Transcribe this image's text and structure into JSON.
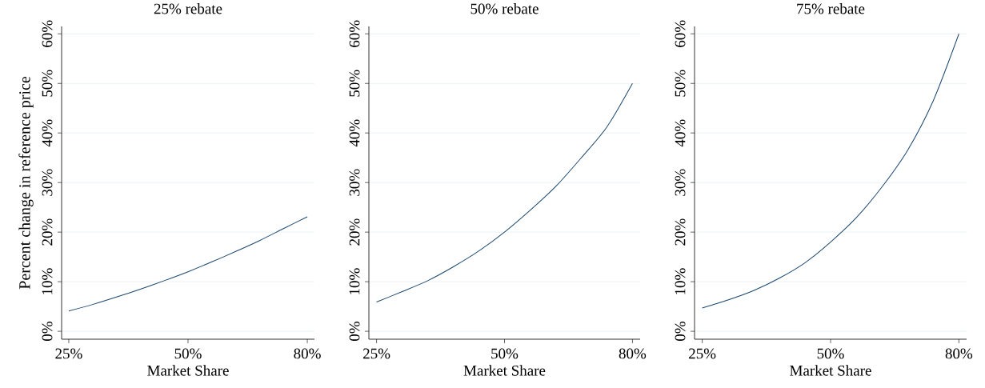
{
  "chart_data": [
    {
      "type": "line",
      "title": "25% rebate",
      "xlabel": "Market Share",
      "ylabel": "Percent change in reference price",
      "categories": [
        "25%",
        null,
        null,
        null,
        null,
        "50%",
        null,
        null,
        null,
        null,
        "80%"
      ],
      "values": [
        4.1,
        5.4,
        6.9,
        8.5,
        10.2,
        12.0,
        14.0,
        16.1,
        18.3,
        20.7,
        23.1
      ],
      "color": "#1a476f",
      "ylim": [
        -1.6,
        61.5
      ],
      "yticks": [
        {
          "value": 0,
          "label": "0%"
        },
        {
          "value": 10,
          "label": "10%"
        },
        {
          "value": 20,
          "label": "20%"
        },
        {
          "value": 30,
          "label": "30%"
        },
        {
          "value": 40,
          "label": "40%"
        },
        {
          "value": 50,
          "label": "50%"
        },
        {
          "value": 60,
          "label": "60%"
        }
      ],
      "grid": "y"
    },
    {
      "type": "line",
      "title": "50% rebate",
      "xlabel": "Market Share",
      "categories": [
        "25%",
        null,
        null,
        null,
        null,
        "50%",
        null,
        null,
        null,
        null,
        "80%"
      ],
      "values": [
        5.9,
        8.0,
        10.2,
        13.0,
        16.2,
        20.0,
        24.4,
        29.2,
        35.0,
        41.2,
        50.0
      ],
      "color": "#1a476f",
      "ylim": [
        -1.6,
        61.5
      ],
      "yticks": [
        {
          "value": 0,
          "label": "0%"
        },
        {
          "value": 10,
          "label": "10%"
        },
        {
          "value": 20,
          "label": "20%"
        },
        {
          "value": 30,
          "label": "30%"
        },
        {
          "value": 40,
          "label": "40%"
        },
        {
          "value": 50,
          "label": "50%"
        },
        {
          "value": 60,
          "label": "60%"
        }
      ],
      "grid": "y"
    },
    {
      "type": "line",
      "title": "75% rebate",
      "xlabel": "Market Share",
      "categories": [
        "25%",
        null,
        null,
        null,
        null,
        "50%",
        null,
        null,
        null,
        null,
        "80%"
      ],
      "values": [
        4.7,
        6.3,
        8.2,
        10.7,
        13.8,
        18.0,
        22.9,
        29.1,
        36.5,
        46.5,
        60.0
      ],
      "color": "#1a476f",
      "ylim": [
        -1.6,
        61.5
      ],
      "yticks": [
        {
          "value": 0,
          "label": "0%"
        },
        {
          "value": 10,
          "label": "10%"
        },
        {
          "value": 20,
          "label": "20%"
        },
        {
          "value": 30,
          "label": "30%"
        },
        {
          "value": 40,
          "label": "40%"
        },
        {
          "value": 50,
          "label": "50%"
        },
        {
          "value": 60,
          "label": "60%"
        }
      ],
      "grid": "y"
    }
  ]
}
